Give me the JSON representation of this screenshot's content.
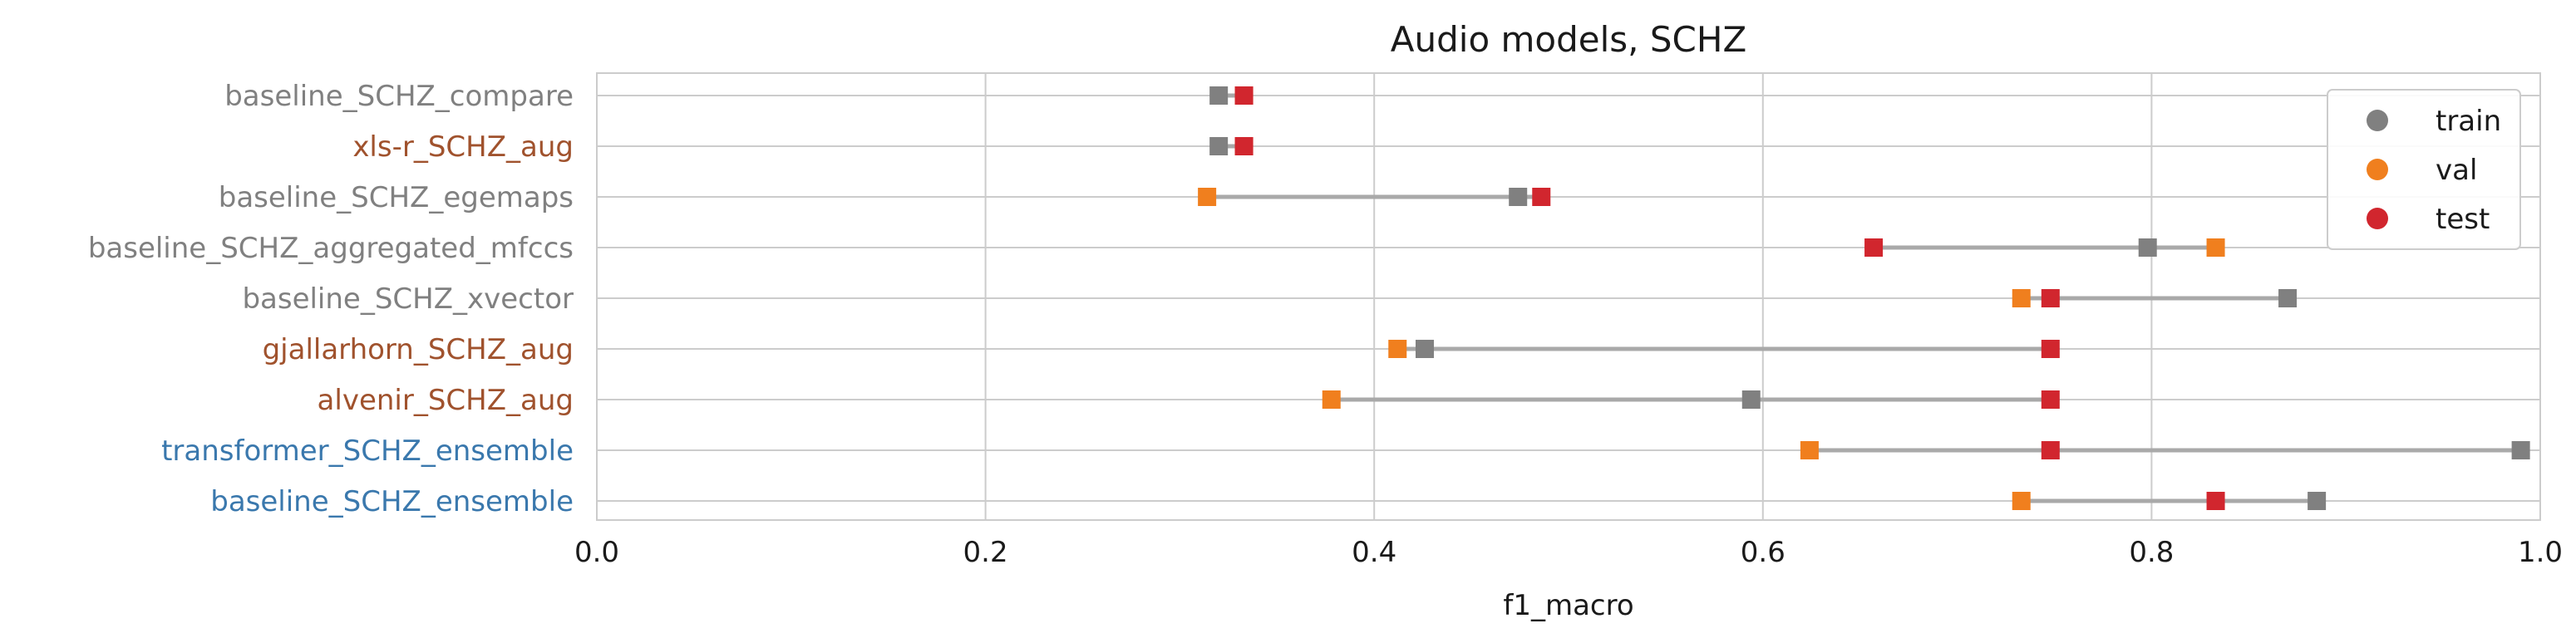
{
  "chart_data": {
    "type": "scatter",
    "title": "Audio models, SCHZ",
    "xlabel": "f1_macro",
    "ylabel": "",
    "xlim": [
      0.0,
      1.0
    ],
    "xticks": [
      "0.0",
      "0.2",
      "0.4",
      "0.6",
      "0.8",
      "1.0"
    ],
    "grid": true,
    "legend_position": "top-right",
    "legend": [
      {
        "name": "train",
        "color": "#808080"
      },
      {
        "name": "val",
        "color": "#f07f1e"
      },
      {
        "name": "test",
        "color": "#d1262e"
      }
    ],
    "categories": [
      {
        "label": "baseline_SCHZ_compare",
        "color": "#808080",
        "train": 0.32,
        "val": 0.333,
        "test": 0.333
      },
      {
        "label": "xls-r_SCHZ_aug",
        "color": "#a0522d",
        "train": 0.32,
        "val": 0.333,
        "test": 0.333
      },
      {
        "label": "baseline_SCHZ_egemaps",
        "color": "#808080",
        "train": 0.474,
        "val": 0.314,
        "test": 0.486
      },
      {
        "label": "baseline_SCHZ_aggregated_mfccs",
        "color": "#808080",
        "train": 0.798,
        "val": 0.833,
        "test": 0.657
      },
      {
        "label": "baseline_SCHZ_xvector",
        "color": "#808080",
        "train": 0.87,
        "val": 0.733,
        "test": 0.748
      },
      {
        "label": "gjallarhorn_SCHZ_aug",
        "color": "#a0522d",
        "train": 0.426,
        "val": 0.412,
        "test": 0.748
      },
      {
        "label": "alvenir_SCHZ_aug",
        "color": "#a0522d",
        "train": 0.594,
        "val": 0.378,
        "test": 0.748
      },
      {
        "label": "transformer_SCHZ_ensemble",
        "color": "#3a78ad",
        "train": 0.99,
        "val": 0.624,
        "test": 0.748
      },
      {
        "label": "baseline_SCHZ_ensemble",
        "color": "#3a78ad",
        "train": 0.885,
        "val": 0.733,
        "test": 0.833
      }
    ]
  }
}
